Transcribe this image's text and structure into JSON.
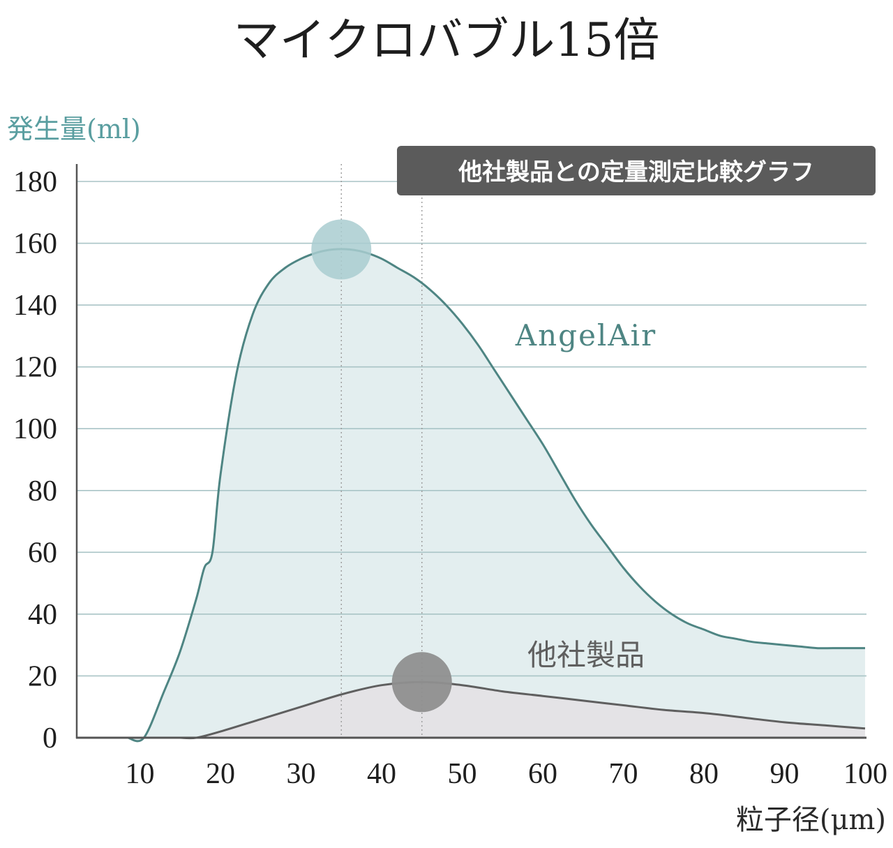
{
  "chart_data": {
    "type": "line",
    "title": "マイクロバブル15倍",
    "ylabel": "発生量(ml)",
    "xlabel": "粒子径(μm)",
    "badge": "他社製品との定量測定比較グラフ",
    "xlim": [
      0,
      100
    ],
    "ylim": [
      0,
      180
    ],
    "xticks": [
      10,
      20,
      30,
      40,
      50,
      60,
      70,
      80,
      90,
      100
    ],
    "yticks": [
      0,
      20,
      40,
      60,
      80,
      100,
      120,
      140,
      160,
      180
    ],
    "grid": "horizontal",
    "series": [
      {
        "name": "AngelAir",
        "color": "#4e8583",
        "fill": "#e3eeef",
        "peak": {
          "x": 35,
          "y": 158
        },
        "marker_color": "#a9cdd0",
        "x": [
          8.5,
          10.5,
          13,
          15,
          17,
          18,
          19,
          20,
          22,
          24,
          26,
          28,
          30,
          32,
          34,
          36,
          38,
          40,
          42,
          44,
          46,
          48,
          50,
          52,
          54,
          56,
          58,
          60,
          62,
          64,
          66,
          68,
          70,
          72,
          74,
          76,
          78,
          80,
          82,
          84,
          86,
          88,
          90,
          92,
          94,
          96,
          98,
          100
        ],
        "y": [
          0,
          0,
          15,
          28,
          45,
          55,
          60,
          85,
          118,
          137,
          147,
          152,
          155,
          157,
          158,
          158,
          157,
          155,
          152,
          149,
          145,
          140,
          134,
          127,
          119,
          111,
          103,
          95,
          86,
          77,
          69,
          62,
          55,
          49,
          44,
          40,
          37,
          35,
          33,
          32,
          31,
          30.5,
          30,
          29.5,
          29,
          29,
          29,
          29
        ]
      },
      {
        "name": "他社製品",
        "color": "#5f5f5f",
        "fill": "#e4e3e6",
        "peak": {
          "x": 45,
          "y": 18
        },
        "marker_color": "#8f8f8f",
        "x": [
          15,
          17,
          20,
          25,
          30,
          35,
          40,
          45,
          50,
          55,
          60,
          65,
          70,
          75,
          80,
          85,
          90,
          95,
          100
        ],
        "y": [
          0,
          0,
          2,
          6,
          10,
          14,
          17,
          18,
          17,
          15,
          13.5,
          12,
          10.5,
          9,
          8,
          6.5,
          5,
          4,
          3
        ]
      }
    ]
  }
}
